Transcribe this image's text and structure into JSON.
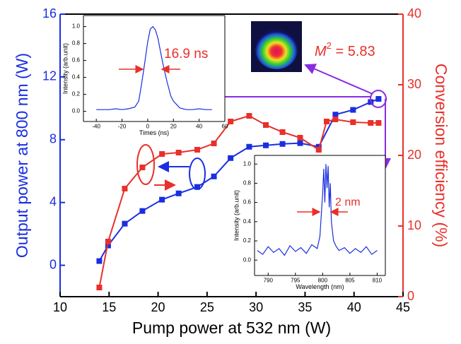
{
  "chart_data": [
    {
      "type": "line",
      "x_label": "Pump power at 532 nm (W)",
      "y_label": "Output power at 800 nm (W)",
      "y2_label": "Conversion efficiency (%)",
      "xlim": [
        10,
        45
      ],
      "xticks": [
        10,
        15,
        20,
        25,
        30,
        35,
        40,
        45
      ],
      "ylim": [
        -2,
        16
      ],
      "yticks": [
        0,
        4,
        8,
        12,
        16
      ],
      "y2lim": [
        0,
        40
      ],
      "y2ticks": [
        0,
        10,
        20,
        30,
        40
      ],
      "series": [
        {
          "color": "#1a2ee0",
          "marker": "square",
          "x": [
            14.0,
            14.9,
            16.6,
            18.4,
            20.4,
            22.1,
            24.0,
            25.7,
            27.4,
            29.3,
            31.0,
            32.7,
            34.5,
            36.4,
            38.1,
            39.9,
            41.7,
            42.5
          ],
          "values": [
            0.27,
            1.26,
            2.65,
            3.46,
            4.18,
            4.58,
            4.99,
            5.66,
            6.83,
            7.55,
            7.64,
            7.73,
            7.78,
            7.55,
            9.6,
            9.9,
            10.4,
            10.6
          ]
        },
        {
          "color": "#e8302a",
          "marker": "square",
          "axis": "y2",
          "x": [
            14.0,
            14.9,
            16.6,
            18.4,
            20.4,
            22.1,
            24.0,
            25.7,
            27.4,
            29.3,
            31.0,
            32.7,
            34.5,
            36.4,
            37.2,
            38.1,
            39.9,
            41.7,
            42.5
          ],
          "values": [
            1.3,
            7.8,
            15.3,
            18.3,
            20.2,
            20.4,
            20.8,
            21.7,
            24.8,
            25.6,
            24.3,
            23.3,
            22.5,
            20.8,
            24.8,
            25.1,
            24.7,
            24.6,
            24.6
          ]
        }
      ],
      "m2_label": {
        "base": "M",
        "sup": "2",
        "rest": " = 5.83"
      }
    },
    {
      "type": "line",
      "x_label": "Times (ns)",
      "y_label": "Intensity (arb.unit)",
      "annotation": "16.9 ns",
      "xlim": [
        -50,
        60
      ],
      "xticks": [
        -40,
        -20,
        0,
        20,
        40,
        60
      ],
      "ylim": [
        -0.12,
        1.13
      ],
      "yticks": [
        {
          "value": 0,
          "label": "0.0"
        },
        0.2,
        0.4,
        0.6,
        0.8,
        {
          "value": 1,
          "label": "1.0"
        }
      ],
      "x": [
        -40,
        -35,
        -30,
        -25,
        -20,
        -15,
        -10,
        -7,
        -5,
        -3,
        0,
        2,
        4,
        6,
        8,
        10,
        12,
        15,
        18,
        20,
        25,
        30,
        35,
        40,
        45,
        50
      ],
      "series": [
        {
          "color": "#1a2ee0",
          "values": [
            0.02,
            0.02,
            0.02,
            0.03,
            0.02,
            0.03,
            0.05,
            0.12,
            0.3,
            0.5,
            0.82,
            0.97,
            1.0,
            0.96,
            0.86,
            0.7,
            0.55,
            0.35,
            0.18,
            0.12,
            0.04,
            0.02,
            0.02,
            0.03,
            0.02,
            0.02
          ]
        }
      ]
    },
    {
      "type": "line",
      "x_label": "Wavelength (nm)",
      "y_label": "Intensity (arb.unit)",
      "annotation": "2 nm",
      "xlim": [
        787.5,
        811.5
      ],
      "xticks": [
        790,
        795,
        800,
        805,
        810
      ],
      "ylim": [
        -0.16,
        1.09
      ],
      "yticks": [
        {
          "value": 0,
          "label": "0.0"
        },
        0.2,
        0.4,
        0.6,
        0.8,
        {
          "value": 1,
          "label": "1.0"
        }
      ],
      "x": [
        788,
        789,
        790,
        791,
        792,
        793,
        794,
        795,
        796,
        797,
        798,
        799,
        799.5,
        800,
        800.2,
        800.4,
        800.6,
        800.8,
        801,
        801.2,
        801.4,
        801.6,
        802,
        802.5,
        803,
        804,
        805,
        806,
        807,
        808,
        809,
        810
      ],
      "series": [
        {
          "color": "#1a2ee0",
          "values": [
            0.1,
            0.06,
            0.14,
            0.08,
            0.12,
            0.05,
            0.15,
            0.09,
            0.13,
            0.07,
            0.16,
            0.12,
            0.25,
            0.7,
            0.95,
            0.6,
            1.0,
            0.75,
            0.98,
            0.55,
            0.8,
            0.4,
            0.2,
            0.14,
            0.1,
            0.13,
            0.07,
            0.12,
            0.08,
            0.14,
            0.06,
            0.1
          ]
        }
      ]
    }
  ]
}
